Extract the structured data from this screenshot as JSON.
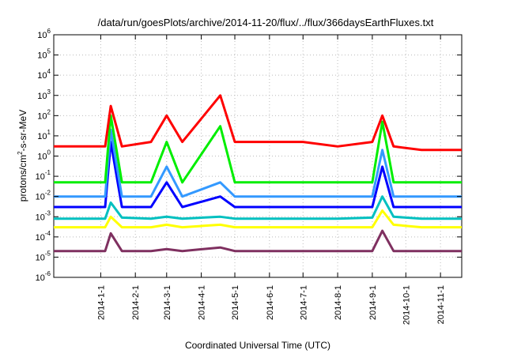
{
  "chart_data": {
    "type": "line",
    "title": "/data/run/goesPlots/archive/2014-11-20/flux/../flux/366daysEarthFluxes.txt",
    "xlabel": "Coordinated Universal Time (UTC)",
    "ylabel": {
      "prefix": "protons/cm",
      "sup": "2",
      "suffix": "-s-sr-MeV"
    },
    "x_range": [
      "2013-11-20",
      "2014-11-20"
    ],
    "y_scale": "log",
    "ylim": [
      1e-06,
      1000000.0
    ],
    "grid": true,
    "legend": "none",
    "x_ticks": [
      {
        "date": "2014-01-01",
        "label": "2014-1-1"
      },
      {
        "date": "2014-02-01",
        "label": "2014-2-1"
      },
      {
        "date": "2014-03-01",
        "label": "2014-3-1"
      },
      {
        "date": "2014-04-01",
        "label": "2014-4-1"
      },
      {
        "date": "2014-05-01",
        "label": "2014-5-1"
      },
      {
        "date": "2014-06-01",
        "label": "2014-6-1"
      },
      {
        "date": "2014-07-01",
        "label": "2014-7-1"
      },
      {
        "date": "2014-08-01",
        "label": "2014-8-1"
      },
      {
        "date": "2014-09-01",
        "label": "2014-9-1"
      },
      {
        "date": "2014-10-01",
        "label": "2014-10-1"
      },
      {
        "date": "2014-11-01",
        "label": "2014-11-1"
      }
    ],
    "y_ticks": [
      {
        "value": 1e-06,
        "base": "10",
        "exp": "-6"
      },
      {
        "value": 1e-05,
        "base": "10",
        "exp": "-5"
      },
      {
        "value": 0.0001,
        "base": "10",
        "exp": "-4"
      },
      {
        "value": 0.001,
        "base": "10",
        "exp": "-3"
      },
      {
        "value": 0.01,
        "base": "10",
        "exp": "-2"
      },
      {
        "value": 0.1,
        "base": "10",
        "exp": "-1"
      },
      {
        "value": 1,
        "base": "10",
        "exp": "0"
      },
      {
        "value": 10.0,
        "base": "10",
        "exp": "1"
      },
      {
        "value": 100.0,
        "base": "10",
        "exp": "2"
      },
      {
        "value": 1000.0,
        "base": "10",
        "exp": "3"
      },
      {
        "value": 10000.0,
        "base": "10",
        "exp": "4"
      },
      {
        "value": 100000.0,
        "base": "10",
        "exp": "5"
      },
      {
        "value": 1000000.0,
        "base": "10",
        "exp": "6"
      }
    ],
    "series": [
      {
        "color": "#7f3060",
        "x": [
          "2013-11-20",
          "2014-01-05",
          "2014-01-10",
          "2014-01-20",
          "2014-02-15",
          "2014-03-01",
          "2014-03-15",
          "2014-04-18",
          "2014-05-01",
          "2014-06-01",
          "2014-07-01",
          "2014-08-01",
          "2014-09-01",
          "2014-09-10",
          "2014-09-20",
          "2014-10-15",
          "2014-11-20"
        ],
        "y": [
          2e-05,
          2e-05,
          0.00015,
          2e-05,
          2e-05,
          2.5e-05,
          2e-05,
          3e-05,
          2e-05,
          2e-05,
          2e-05,
          2e-05,
          2e-05,
          0.0002,
          2e-05,
          2e-05,
          2e-05
        ]
      },
      {
        "color": "#ffff00",
        "x": [
          "2013-11-20",
          "2014-01-05",
          "2014-01-10",
          "2014-01-20",
          "2014-02-15",
          "2014-03-01",
          "2014-03-15",
          "2014-04-18",
          "2014-05-01",
          "2014-06-01",
          "2014-07-01",
          "2014-08-01",
          "2014-09-01",
          "2014-09-10",
          "2014-09-20",
          "2014-10-15",
          "2014-11-20"
        ],
        "y": [
          0.0003,
          0.0003,
          0.001,
          0.0003,
          0.0003,
          0.0004,
          0.0003,
          0.0004,
          0.0003,
          0.0003,
          0.0003,
          0.0003,
          0.0003,
          0.002,
          0.0004,
          0.0003,
          0.0003
        ]
      },
      {
        "color": "#00c0c0",
        "x": [
          "2013-11-20",
          "2014-01-05",
          "2014-01-10",
          "2014-01-20",
          "2014-02-15",
          "2014-03-01",
          "2014-03-15",
          "2014-04-18",
          "2014-05-01",
          "2014-06-01",
          "2014-07-01",
          "2014-08-01",
          "2014-09-01",
          "2014-09-10",
          "2014-09-20",
          "2014-10-15",
          "2014-11-20"
        ],
        "y": [
          0.0008,
          0.0008,
          0.005,
          0.0009,
          0.0008,
          0.001,
          0.0008,
          0.001,
          0.0008,
          0.0008,
          0.0008,
          0.0008,
          0.0009,
          0.01,
          0.001,
          0.0008,
          0.0008
        ]
      },
      {
        "color": "#0000ff",
        "x": [
          "2013-11-20",
          "2014-01-05",
          "2014-01-10",
          "2014-01-20",
          "2014-02-15",
          "2014-03-01",
          "2014-03-15",
          "2014-04-18",
          "2014-05-01",
          "2014-06-01",
          "2014-07-01",
          "2014-08-01",
          "2014-09-01",
          "2014-09-10",
          "2014-09-20",
          "2014-10-15",
          "2014-11-20"
        ],
        "y": [
          0.003,
          0.003,
          5,
          0.003,
          0.003,
          0.05,
          0.003,
          0.01,
          0.003,
          0.003,
          0.003,
          0.003,
          0.003,
          0.3,
          0.003,
          0.003,
          0.003
        ]
      },
      {
        "color": "#3399ff",
        "x": [
          "2013-11-20",
          "2014-01-05",
          "2014-01-10",
          "2014-01-20",
          "2014-02-15",
          "2014-03-01",
          "2014-03-15",
          "2014-04-18",
          "2014-05-01",
          "2014-06-01",
          "2014-07-01",
          "2014-08-01",
          "2014-09-01",
          "2014-09-10",
          "2014-09-20",
          "2014-10-15",
          "2014-11-20"
        ],
        "y": [
          0.01,
          0.01,
          20,
          0.01,
          0.01,
          0.3,
          0.01,
          0.05,
          0.01,
          0.01,
          0.01,
          0.01,
          0.01,
          2,
          0.01,
          0.01,
          0.01
        ]
      },
      {
        "color": "#00ee00",
        "x": [
          "2013-11-20",
          "2014-01-05",
          "2014-01-10",
          "2014-01-20",
          "2014-02-15",
          "2014-03-01",
          "2014-03-15",
          "2014-04-18",
          "2014-05-01",
          "2014-06-01",
          "2014-07-01",
          "2014-08-01",
          "2014-09-01",
          "2014-09-10",
          "2014-09-20",
          "2014-10-15",
          "2014-11-20"
        ],
        "y": [
          0.05,
          0.05,
          100,
          0.05,
          0.05,
          5,
          0.05,
          30,
          0.05,
          0.05,
          0.05,
          0.05,
          0.05,
          50,
          0.05,
          0.05,
          0.05
        ]
      },
      {
        "color": "#ff0000",
        "x": [
          "2013-11-20",
          "2014-01-05",
          "2014-01-10",
          "2014-01-20",
          "2014-02-15",
          "2014-03-01",
          "2014-03-15",
          "2014-04-18",
          "2014-05-01",
          "2014-06-01",
          "2014-07-01",
          "2014-08-01",
          "2014-09-01",
          "2014-09-10",
          "2014-09-20",
          "2014-10-15",
          "2014-11-20"
        ],
        "y": [
          3,
          3,
          300,
          3,
          5,
          100,
          5,
          1000,
          5,
          5,
          5,
          3,
          5,
          100,
          3,
          2,
          2
        ]
      }
    ]
  }
}
